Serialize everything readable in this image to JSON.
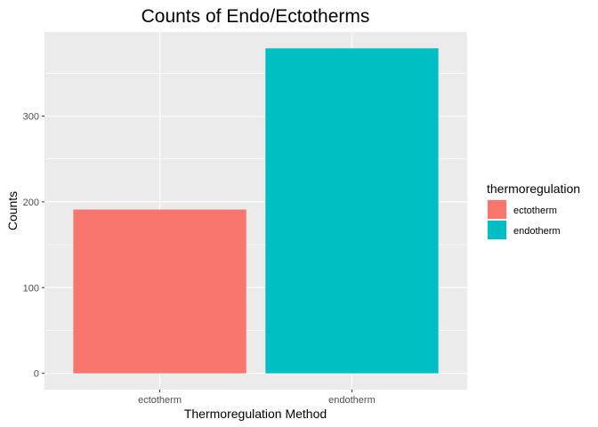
{
  "chart_data": {
    "type": "bar",
    "title": "Counts of Endo/Ectotherms",
    "xlabel": "Thermoregulation Method",
    "ylabel": "Counts",
    "categories": [
      "ectotherm",
      "endotherm"
    ],
    "values": [
      191,
      379
    ],
    "colors": [
      "#F8766D",
      "#00BFC4"
    ],
    "ylim": [
      -19,
      398
    ],
    "yticks": [
      0,
      100,
      200,
      300
    ],
    "ytick_labels": [
      "0",
      "100",
      "200",
      "300"
    ],
    "grid": true,
    "legend": {
      "title": "thermoregulation",
      "position": "right",
      "entries": [
        "ectotherm",
        "endotherm"
      ]
    }
  }
}
